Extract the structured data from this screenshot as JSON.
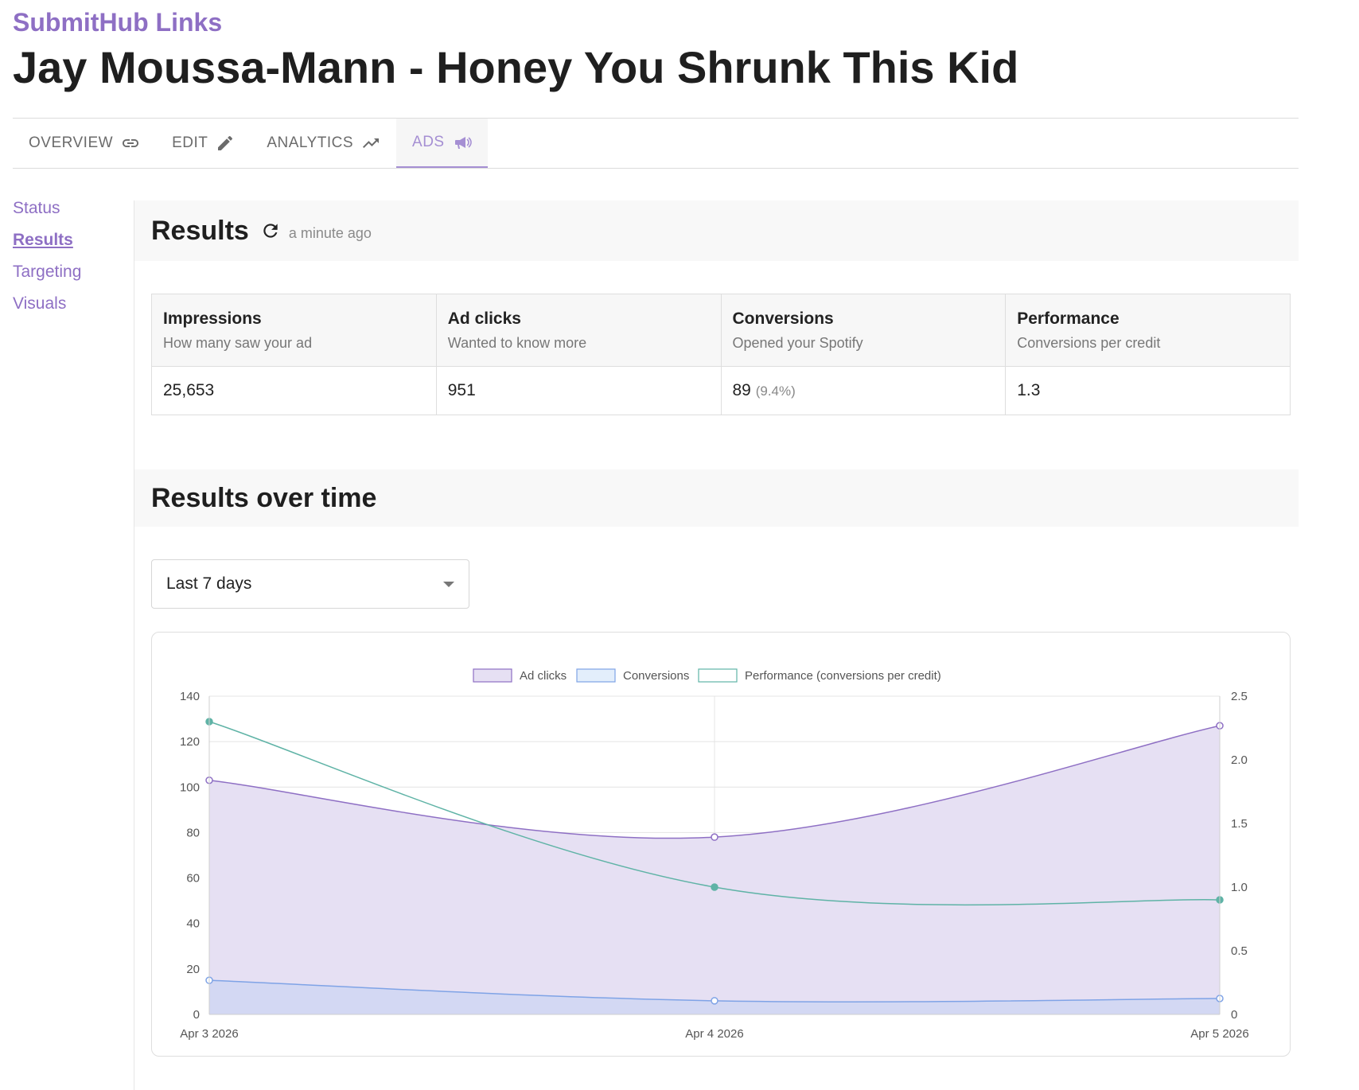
{
  "brand": "SubmitHub Links",
  "title": "Jay Moussa-Mann - Honey You Shrunk This Kid",
  "tabs": [
    {
      "label": "OVERVIEW",
      "icon": "link-icon",
      "active": false
    },
    {
      "label": "EDIT",
      "icon": "pencil-icon",
      "active": false
    },
    {
      "label": "ANALYTICS",
      "icon": "trending-up-icon",
      "active": false
    },
    {
      "label": "ADS",
      "icon": "megaphone-icon",
      "active": true
    }
  ],
  "sidebar": {
    "items": [
      {
        "label": "Status",
        "current": false
      },
      {
        "label": "Results",
        "current": true
      },
      {
        "label": "Targeting",
        "current": false
      },
      {
        "label": "Visuals",
        "current": false
      }
    ]
  },
  "results": {
    "heading": "Results",
    "updated": "a minute ago",
    "stats": [
      {
        "title": "Impressions",
        "subtitle": "How many saw your ad",
        "value": "25,653",
        "extra": ""
      },
      {
        "title": "Ad clicks",
        "subtitle": "Wanted to know more",
        "value": "951",
        "extra": ""
      },
      {
        "title": "Conversions",
        "subtitle": "Opened your Spotify",
        "value": "89",
        "extra": "(9.4%)"
      },
      {
        "title": "Performance",
        "subtitle": "Conversions per credit",
        "value": "1.3",
        "extra": ""
      }
    ]
  },
  "over_time": {
    "heading": "Results over time",
    "range_selected": "Last 7 days"
  },
  "colors": {
    "brand": "#8e6fc4",
    "ad_clicks": "#8e6fc4",
    "ad_clicks_fill": "#e6e0f3",
    "conversions": "#7fa3e6",
    "conversions_fill": "#cfd6f2",
    "performance": "#5fb3a6"
  },
  "chart_data": {
    "type": "line",
    "categories": [
      "Apr 3 2026",
      "Apr 4 2026",
      "Apr 5 2026"
    ],
    "series": [
      {
        "name": "Ad clicks",
        "values": [
          103,
          78,
          127
        ],
        "axis": "left",
        "fill": true
      },
      {
        "name": "Conversions",
        "values": [
          15,
          6,
          7
        ],
        "axis": "left",
        "fill": true
      },
      {
        "name": "Performance (conversions per credit)",
        "values": [
          2.3,
          1.0,
          0.9
        ],
        "axis": "right",
        "fill": false
      }
    ],
    "y_left": {
      "min": 0,
      "max": 140,
      "ticks": [
        "0",
        "20",
        "40",
        "60",
        "80",
        "100",
        "120",
        "140"
      ]
    },
    "y_right": {
      "min": 0,
      "max": 2.5,
      "ticks": [
        "0",
        "0.5",
        "1.0",
        "1.5",
        "2.0",
        "2.5"
      ]
    },
    "legend_position": "top",
    "grid": true
  }
}
